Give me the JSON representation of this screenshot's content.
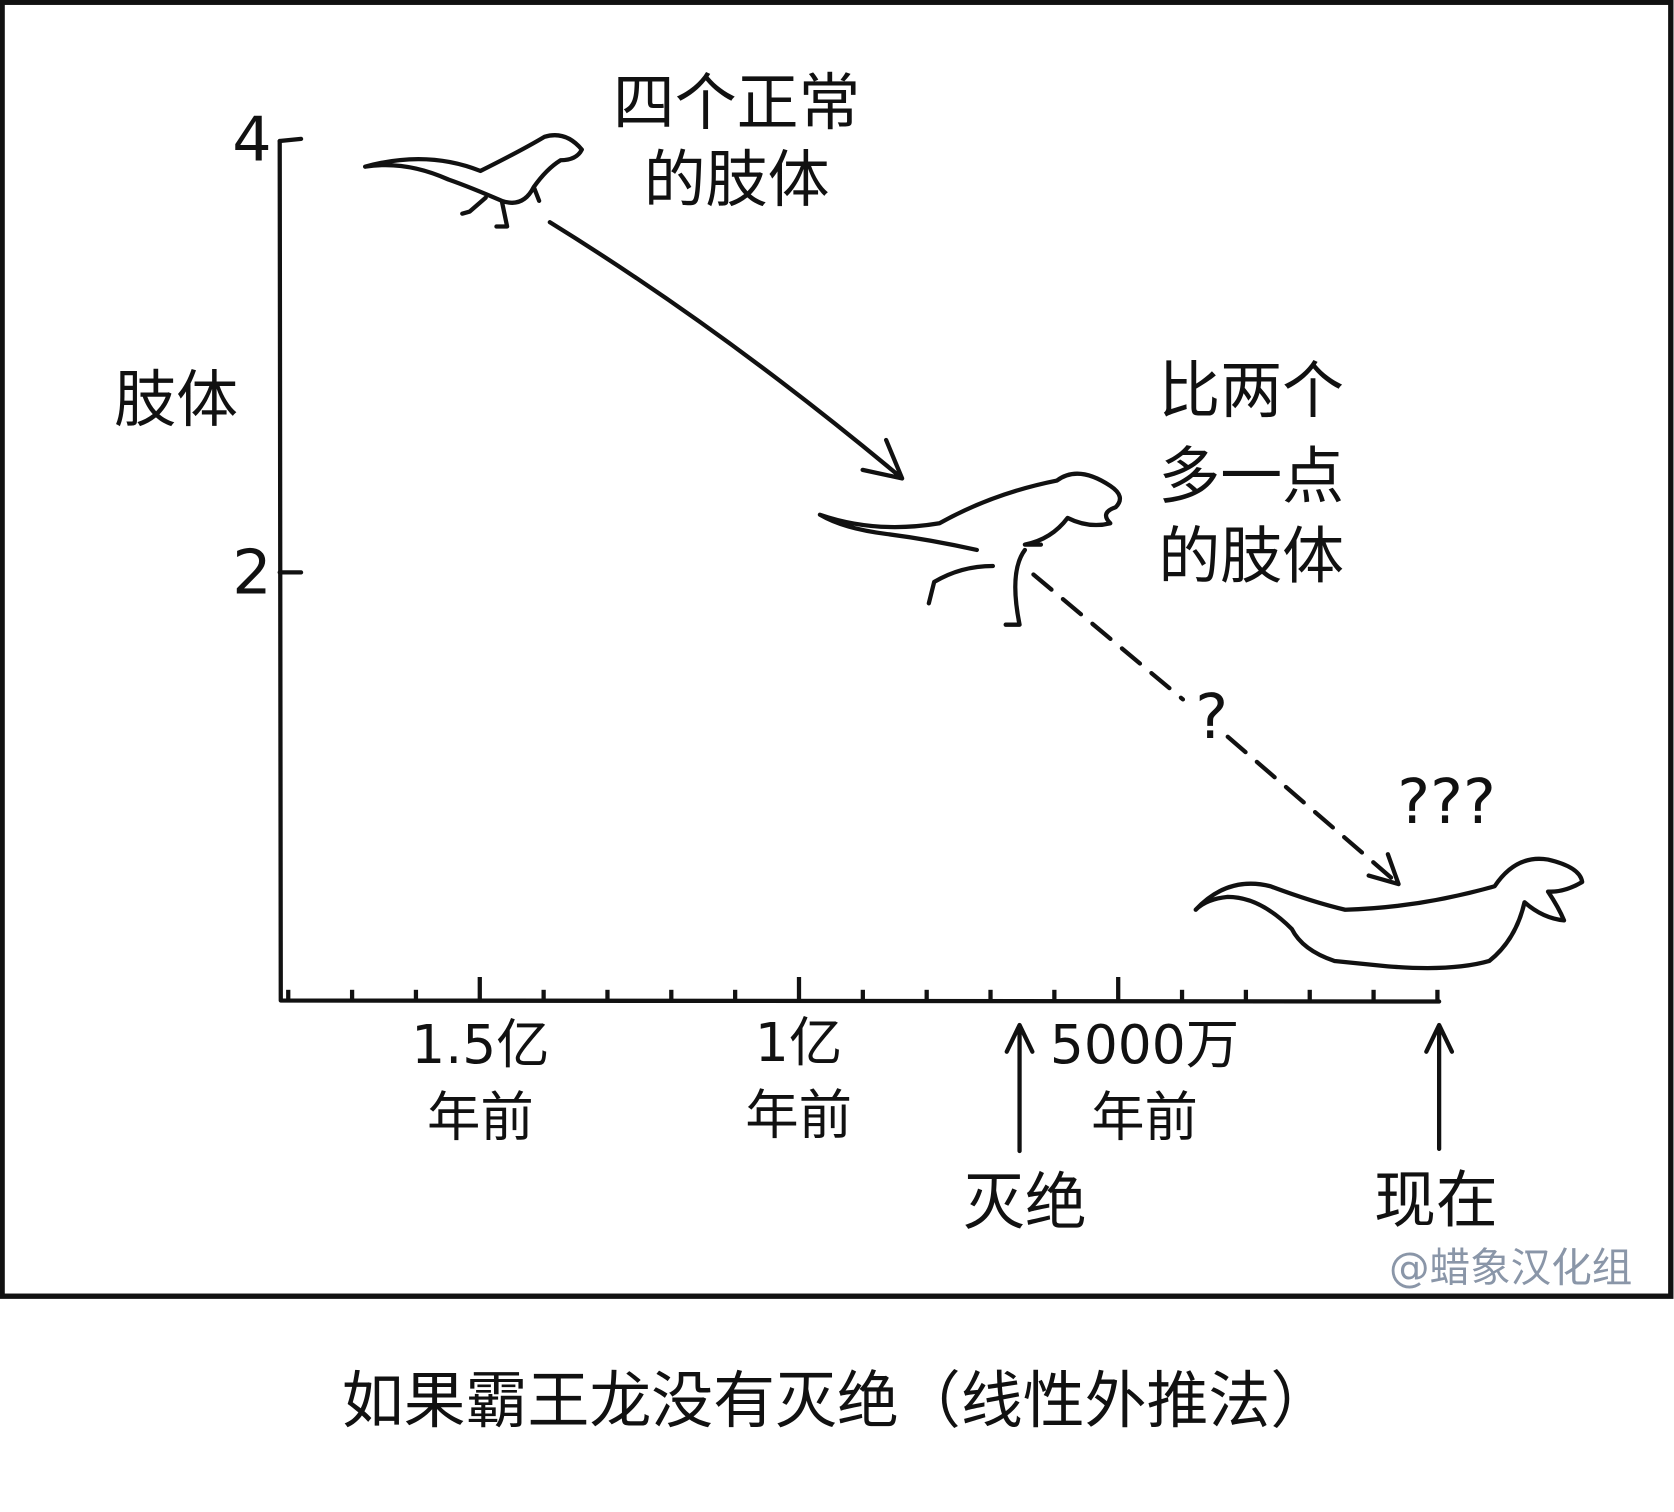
{
  "y_axis": {
    "label": "肢体",
    "ticks": [
      "4",
      "2"
    ]
  },
  "x_axis": {
    "ticks": [
      [
        "1.5亿",
        "年前"
      ],
      [
        "1亿",
        "年前"
      ],
      [
        "5000万",
        "年前"
      ]
    ]
  },
  "annotations": {
    "first": [
      "四个正常",
      "的肢体"
    ],
    "second": [
      "比两个",
      "多一点",
      "的肢体"
    ],
    "question": "?",
    "questions": "???"
  },
  "markers": {
    "extinction": "灭绝",
    "now": "现在"
  },
  "watermark": "@蜡象汉化组",
  "caption": "如果霸王龙没有灭绝（线性外推法）"
}
